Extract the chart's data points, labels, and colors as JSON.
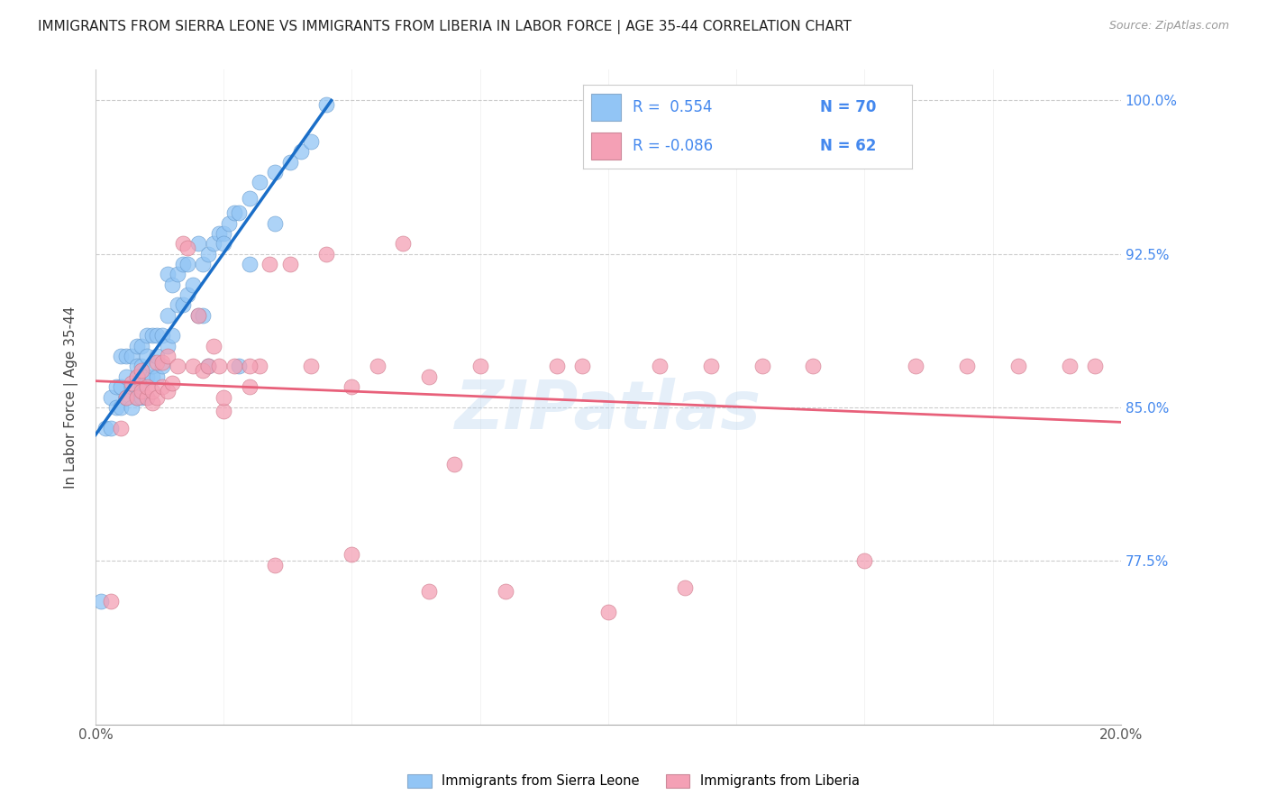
{
  "title": "IMMIGRANTS FROM SIERRA LEONE VS IMMIGRANTS FROM LIBERIA IN LABOR FORCE | AGE 35-44 CORRELATION CHART",
  "source": "Source: ZipAtlas.com",
  "ylabel": "In Labor Force | Age 35-44",
  "ytick_labels": [
    "100.0%",
    "92.5%",
    "85.0%",
    "77.5%"
  ],
  "ytick_values": [
    1.0,
    0.925,
    0.85,
    0.775
  ],
  "xlim": [
    0.0,
    0.2
  ],
  "ylim": [
    0.695,
    1.015
  ],
  "legend1_R": " 0.554",
  "legend1_N": "70",
  "legend2_R": "-0.086",
  "legend2_N": "62",
  "color_sl": "#92C5F5",
  "color_lib": "#F4A0B5",
  "trendline_sl_color": "#1A6EC8",
  "trendline_lib_color": "#E8607A",
  "watermark": "ZIPatlas",
  "sl_x": [
    0.001,
    0.002,
    0.003,
    0.003,
    0.004,
    0.004,
    0.005,
    0.005,
    0.005,
    0.006,
    0.006,
    0.006,
    0.007,
    0.007,
    0.007,
    0.008,
    0.008,
    0.008,
    0.008,
    0.009,
    0.009,
    0.009,
    0.009,
    0.01,
    0.01,
    0.01,
    0.01,
    0.011,
    0.011,
    0.011,
    0.012,
    0.012,
    0.012,
    0.013,
    0.013,
    0.014,
    0.014,
    0.014,
    0.015,
    0.015,
    0.016,
    0.016,
    0.017,
    0.017,
    0.018,
    0.018,
    0.019,
    0.02,
    0.021,
    0.022,
    0.023,
    0.024,
    0.025,
    0.026,
    0.027,
    0.028,
    0.03,
    0.032,
    0.035,
    0.038,
    0.04,
    0.042,
    0.045,
    0.02,
    0.021,
    0.022,
    0.025,
    0.028,
    0.03,
    0.035
  ],
  "sl_y": [
    0.755,
    0.84,
    0.84,
    0.855,
    0.85,
    0.86,
    0.85,
    0.86,
    0.875,
    0.855,
    0.865,
    0.875,
    0.85,
    0.86,
    0.875,
    0.855,
    0.865,
    0.87,
    0.88,
    0.855,
    0.86,
    0.87,
    0.88,
    0.855,
    0.865,
    0.875,
    0.885,
    0.865,
    0.87,
    0.885,
    0.865,
    0.875,
    0.885,
    0.87,
    0.885,
    0.88,
    0.895,
    0.915,
    0.885,
    0.91,
    0.9,
    0.915,
    0.9,
    0.92,
    0.905,
    0.92,
    0.91,
    0.93,
    0.92,
    0.925,
    0.93,
    0.935,
    0.935,
    0.94,
    0.945,
    0.945,
    0.952,
    0.96,
    0.965,
    0.97,
    0.975,
    0.98,
    0.998,
    0.895,
    0.895,
    0.87,
    0.93,
    0.87,
    0.92,
    0.94
  ],
  "lib_x": [
    0.003,
    0.005,
    0.006,
    0.007,
    0.008,
    0.008,
    0.009,
    0.009,
    0.01,
    0.01,
    0.011,
    0.011,
    0.012,
    0.012,
    0.013,
    0.013,
    0.014,
    0.014,
    0.015,
    0.016,
    0.017,
    0.018,
    0.019,
    0.02,
    0.021,
    0.022,
    0.023,
    0.024,
    0.025,
    0.027,
    0.03,
    0.032,
    0.034,
    0.038,
    0.042,
    0.045,
    0.05,
    0.055,
    0.06,
    0.065,
    0.07,
    0.075,
    0.08,
    0.09,
    0.095,
    0.1,
    0.11,
    0.115,
    0.12,
    0.13,
    0.14,
    0.15,
    0.16,
    0.17,
    0.18,
    0.19,
    0.195,
    0.025,
    0.03,
    0.035,
    0.05,
    0.065
  ],
  "lib_y": [
    0.755,
    0.84,
    0.855,
    0.862,
    0.855,
    0.865,
    0.858,
    0.868,
    0.855,
    0.86,
    0.852,
    0.858,
    0.855,
    0.872,
    0.86,
    0.872,
    0.858,
    0.875,
    0.862,
    0.87,
    0.93,
    0.928,
    0.87,
    0.895,
    0.868,
    0.87,
    0.88,
    0.87,
    0.848,
    0.87,
    0.86,
    0.87,
    0.92,
    0.92,
    0.87,
    0.925,
    0.86,
    0.87,
    0.93,
    0.865,
    0.822,
    0.87,
    0.76,
    0.87,
    0.87,
    0.75,
    0.87,
    0.762,
    0.87,
    0.87,
    0.87,
    0.775,
    0.87,
    0.87,
    0.87,
    0.87,
    0.87,
    0.855,
    0.87,
    0.773,
    0.778,
    0.76
  ]
}
